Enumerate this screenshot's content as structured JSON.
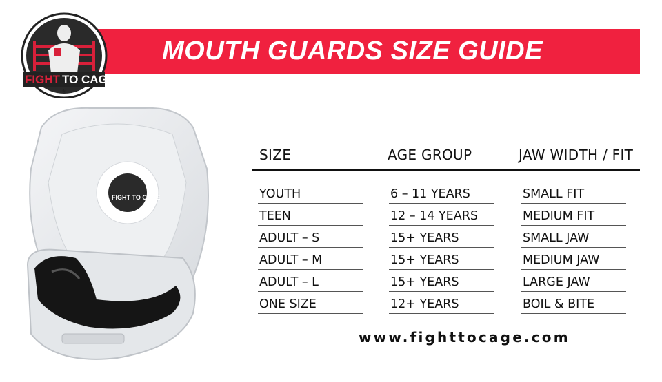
{
  "banner": {
    "title": "MOUTH GUARDS SIZE GUIDE",
    "color": "#f0213f"
  },
  "logo": {
    "text": "FIGHT TO CAGE"
  },
  "table": {
    "headers": [
      "SIZE",
      "AGE GROUP",
      "JAW WIDTH / FIT"
    ],
    "rows": [
      [
        "YOUTH",
        "6 – 11 YEARS",
        "SMALL FIT"
      ],
      [
        "TEEN",
        "12 – 14 YEARS",
        "MEDIUM FIT"
      ],
      [
        "ADULT – S",
        "15+ YEARS",
        "SMALL JAW"
      ],
      [
        "ADULT – M",
        "15+ YEARS",
        "MEDIUM JAW"
      ],
      [
        "ADULT – L",
        "15+ YEARS",
        "LARGE JAW"
      ],
      [
        "ONE SIZE",
        "12+ YEARS",
        "BOIL & BITE"
      ]
    ]
  },
  "footer": {
    "url": "www.fighttocage.com"
  }
}
